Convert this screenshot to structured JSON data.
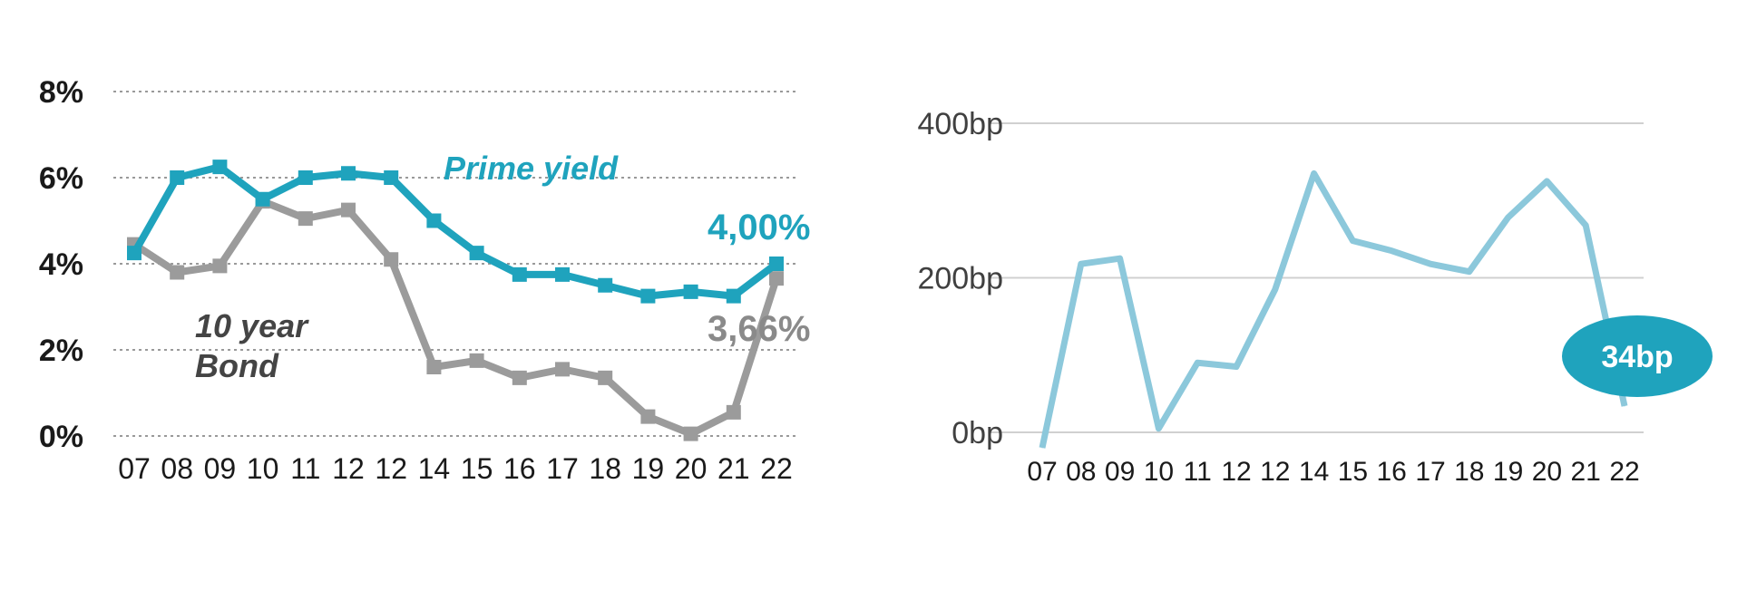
{
  "colors": {
    "prime": "#1fa3bd",
    "bond": "#9b9b9b",
    "spread": "#8cc8db",
    "bubble": "#1fa3bd",
    "grid_dotted": "#9a9a9a",
    "grid_solid": "#d0d0d0"
  },
  "chart_data": [
    {
      "type": "line",
      "categories": [
        "07",
        "08",
        "09",
        "10",
        "11",
        "12",
        "12",
        "14",
        "15",
        "16",
        "17",
        "18",
        "19",
        "20",
        "21",
        "22"
      ],
      "y_ticks": [
        "0%",
        "2%",
        "4%",
        "6%",
        "8%"
      ],
      "ylim": [
        0,
        8
      ],
      "grid": true,
      "series": [
        {
          "name": "Prime yield",
          "values": [
            4.25,
            6.0,
            6.25,
            5.5,
            6.0,
            6.1,
            6.0,
            5.0,
            4.25,
            3.75,
            3.75,
            3.5,
            3.25,
            3.35,
            3.25,
            4.0
          ],
          "end_label": "4,00%"
        },
        {
          "name": "10 year Bond",
          "name_lines": [
            "10 year",
            "Bond"
          ],
          "values": [
            4.45,
            3.8,
            3.95,
            5.45,
            5.05,
            5.25,
            4.1,
            1.6,
            1.75,
            1.35,
            1.55,
            1.35,
            0.45,
            0.05,
            0.55,
            3.66
          ],
          "end_label": "3,66%"
        }
      ]
    },
    {
      "type": "line",
      "categories": [
        "07",
        "08",
        "09",
        "10",
        "11",
        "12",
        "12",
        "14",
        "15",
        "16",
        "17",
        "18",
        "19",
        "20",
        "21",
        "22"
      ],
      "y_ticks": [
        "0bp",
        "200bp",
        "400bp"
      ],
      "ylim": [
        0,
        400
      ],
      "grid": true,
      "series": [
        {
          "values": [
            -20,
            218,
            225,
            5,
            90,
            85,
            185,
            335,
            248,
            235,
            218,
            208,
            278,
            325,
            268,
            34
          ],
          "end_label": "34bp"
        }
      ]
    }
  ]
}
